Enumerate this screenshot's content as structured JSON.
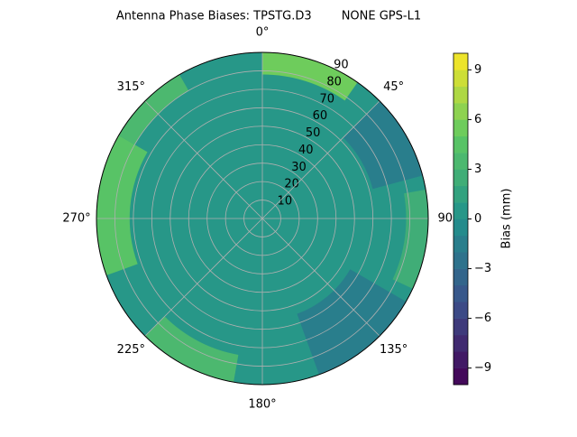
{
  "chart_data": {
    "type": "polar-contour",
    "title": "Antenna Phase Biases: TPSTG.D3        NONE GPS-L1",
    "colorbar_label": "Bias (mm)",
    "colormap": "viridis",
    "grid": true,
    "levels": [
      -10,
      -9,
      -8,
      -7,
      -6,
      -5,
      -4,
      -3,
      -2,
      -1,
      0,
      1,
      2,
      3,
      4,
      5,
      6,
      7,
      8,
      9,
      10
    ],
    "clim": [
      -10,
      10
    ],
    "cticks": [
      {
        "value": -9,
        "label": "−9"
      },
      {
        "value": -6,
        "label": "−6"
      },
      {
        "value": -3,
        "label": "−3"
      },
      0,
      3,
      6,
      9
    ],
    "rlim": [
      0,
      90
    ],
    "rticks": [
      10,
      20,
      30,
      40,
      50,
      60,
      70,
      80,
      90
    ],
    "thetaticks": [
      {
        "value": 0,
        "label": "0°"
      },
      {
        "value": 45,
        "label": "45°"
      },
      {
        "value": 90,
        "label": "90°"
      },
      {
        "value": 135,
        "label": "135°"
      },
      {
        "value": 180,
        "label": "180°"
      },
      {
        "value": 225,
        "label": "225°"
      },
      {
        "value": 270,
        "label": "270°"
      },
      {
        "value": 315,
        "label": "315°"
      }
    ],
    "regions": [
      {
        "theta": [
          0,
          360
        ],
        "r": [
          0,
          90
        ],
        "value": 0.5
      },
      {
        "theta": [
          250,
          300
        ],
        "r": [
          72,
          90
        ],
        "value": 4.5
      },
      {
        "theta": [
          300,
          330
        ],
        "r": [
          80,
          90
        ],
        "value": 3.5
      },
      {
        "theta": [
          0,
          35
        ],
        "r": [
          78,
          90
        ],
        "value": 5.5
      },
      {
        "theta": [
          45,
          75
        ],
        "r": [
          62,
          90
        ],
        "value": -1.5
      },
      {
        "theta": [
          80,
          115
        ],
        "r": [
          78,
          90
        ],
        "value": 2.5
      },
      {
        "theta": [
          120,
          160
        ],
        "r": [
          55,
          90
        ],
        "value": -1.5
      },
      {
        "theta": [
          190,
          225
        ],
        "r": [
          75,
          90
        ],
        "value": 3.5
      }
    ]
  }
}
